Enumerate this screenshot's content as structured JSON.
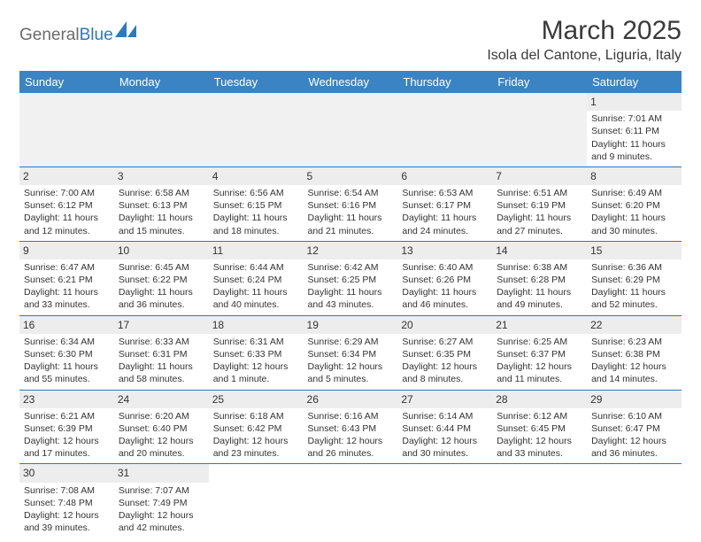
{
  "logo": {
    "gray": "General",
    "blue": "Blue"
  },
  "header": {
    "title": "March 2025",
    "location": "Isola del Cantone, Liguria, Italy"
  },
  "colors": {
    "header_bg": "#3a84c4",
    "border": "#2e78bd",
    "daynum_bg": "#ededed",
    "empty_bg": "#f1f1f1"
  },
  "weekdays": [
    "Sunday",
    "Monday",
    "Tuesday",
    "Wednesday",
    "Thursday",
    "Friday",
    "Saturday"
  ],
  "weeks": [
    [
      null,
      null,
      null,
      null,
      null,
      null,
      {
        "n": "1",
        "sr": "Sunrise: 7:01 AM",
        "ss": "Sunset: 6:11 PM",
        "dl": "Daylight: 11 hours and 9 minutes."
      }
    ],
    [
      {
        "n": "2",
        "sr": "Sunrise: 7:00 AM",
        "ss": "Sunset: 6:12 PM",
        "dl": "Daylight: 11 hours and 12 minutes."
      },
      {
        "n": "3",
        "sr": "Sunrise: 6:58 AM",
        "ss": "Sunset: 6:13 PM",
        "dl": "Daylight: 11 hours and 15 minutes."
      },
      {
        "n": "4",
        "sr": "Sunrise: 6:56 AM",
        "ss": "Sunset: 6:15 PM",
        "dl": "Daylight: 11 hours and 18 minutes."
      },
      {
        "n": "5",
        "sr": "Sunrise: 6:54 AM",
        "ss": "Sunset: 6:16 PM",
        "dl": "Daylight: 11 hours and 21 minutes."
      },
      {
        "n": "6",
        "sr": "Sunrise: 6:53 AM",
        "ss": "Sunset: 6:17 PM",
        "dl": "Daylight: 11 hours and 24 minutes."
      },
      {
        "n": "7",
        "sr": "Sunrise: 6:51 AM",
        "ss": "Sunset: 6:19 PM",
        "dl": "Daylight: 11 hours and 27 minutes."
      },
      {
        "n": "8",
        "sr": "Sunrise: 6:49 AM",
        "ss": "Sunset: 6:20 PM",
        "dl": "Daylight: 11 hours and 30 minutes."
      }
    ],
    [
      {
        "n": "9",
        "sr": "Sunrise: 6:47 AM",
        "ss": "Sunset: 6:21 PM",
        "dl": "Daylight: 11 hours and 33 minutes."
      },
      {
        "n": "10",
        "sr": "Sunrise: 6:45 AM",
        "ss": "Sunset: 6:22 PM",
        "dl": "Daylight: 11 hours and 36 minutes."
      },
      {
        "n": "11",
        "sr": "Sunrise: 6:44 AM",
        "ss": "Sunset: 6:24 PM",
        "dl": "Daylight: 11 hours and 40 minutes."
      },
      {
        "n": "12",
        "sr": "Sunrise: 6:42 AM",
        "ss": "Sunset: 6:25 PM",
        "dl": "Daylight: 11 hours and 43 minutes."
      },
      {
        "n": "13",
        "sr": "Sunrise: 6:40 AM",
        "ss": "Sunset: 6:26 PM",
        "dl": "Daylight: 11 hours and 46 minutes."
      },
      {
        "n": "14",
        "sr": "Sunrise: 6:38 AM",
        "ss": "Sunset: 6:28 PM",
        "dl": "Daylight: 11 hours and 49 minutes."
      },
      {
        "n": "15",
        "sr": "Sunrise: 6:36 AM",
        "ss": "Sunset: 6:29 PM",
        "dl": "Daylight: 11 hours and 52 minutes."
      }
    ],
    [
      {
        "n": "16",
        "sr": "Sunrise: 6:34 AM",
        "ss": "Sunset: 6:30 PM",
        "dl": "Daylight: 11 hours and 55 minutes."
      },
      {
        "n": "17",
        "sr": "Sunrise: 6:33 AM",
        "ss": "Sunset: 6:31 PM",
        "dl": "Daylight: 11 hours and 58 minutes."
      },
      {
        "n": "18",
        "sr": "Sunrise: 6:31 AM",
        "ss": "Sunset: 6:33 PM",
        "dl": "Daylight: 12 hours and 1 minute."
      },
      {
        "n": "19",
        "sr": "Sunrise: 6:29 AM",
        "ss": "Sunset: 6:34 PM",
        "dl": "Daylight: 12 hours and 5 minutes."
      },
      {
        "n": "20",
        "sr": "Sunrise: 6:27 AM",
        "ss": "Sunset: 6:35 PM",
        "dl": "Daylight: 12 hours and 8 minutes."
      },
      {
        "n": "21",
        "sr": "Sunrise: 6:25 AM",
        "ss": "Sunset: 6:37 PM",
        "dl": "Daylight: 12 hours and 11 minutes."
      },
      {
        "n": "22",
        "sr": "Sunrise: 6:23 AM",
        "ss": "Sunset: 6:38 PM",
        "dl": "Daylight: 12 hours and 14 minutes."
      }
    ],
    [
      {
        "n": "23",
        "sr": "Sunrise: 6:21 AM",
        "ss": "Sunset: 6:39 PM",
        "dl": "Daylight: 12 hours and 17 minutes."
      },
      {
        "n": "24",
        "sr": "Sunrise: 6:20 AM",
        "ss": "Sunset: 6:40 PM",
        "dl": "Daylight: 12 hours and 20 minutes."
      },
      {
        "n": "25",
        "sr": "Sunrise: 6:18 AM",
        "ss": "Sunset: 6:42 PM",
        "dl": "Daylight: 12 hours and 23 minutes."
      },
      {
        "n": "26",
        "sr": "Sunrise: 6:16 AM",
        "ss": "Sunset: 6:43 PM",
        "dl": "Daylight: 12 hours and 26 minutes."
      },
      {
        "n": "27",
        "sr": "Sunrise: 6:14 AM",
        "ss": "Sunset: 6:44 PM",
        "dl": "Daylight: 12 hours and 30 minutes."
      },
      {
        "n": "28",
        "sr": "Sunrise: 6:12 AM",
        "ss": "Sunset: 6:45 PM",
        "dl": "Daylight: 12 hours and 33 minutes."
      },
      {
        "n": "29",
        "sr": "Sunrise: 6:10 AM",
        "ss": "Sunset: 6:47 PM",
        "dl": "Daylight: 12 hours and 36 minutes."
      }
    ],
    [
      {
        "n": "30",
        "sr": "Sunrise: 7:08 AM",
        "ss": "Sunset: 7:48 PM",
        "dl": "Daylight: 12 hours and 39 minutes."
      },
      {
        "n": "31",
        "sr": "Sunrise: 7:07 AM",
        "ss": "Sunset: 7:49 PM",
        "dl": "Daylight: 12 hours and 42 minutes."
      },
      null,
      null,
      null,
      null,
      null
    ]
  ]
}
